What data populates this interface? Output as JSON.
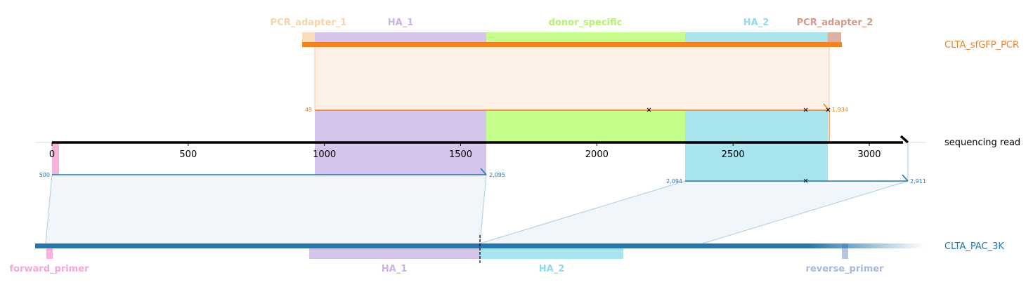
{
  "colors": {
    "orange": "#f5821f",
    "orange_fill": "#fdf0e6",
    "blue": "#1f77b4",
    "blue_fill": "#eaf2f8",
    "ha1": "#d6c5eb",
    "donor": "#c6fe8c",
    "ha2": "#a8e4ee",
    "pcr1": "#fbdcb8",
    "pcr2": "#dcb1a4",
    "primer_fwd": "#f8b3dc",
    "primer_rev": "#b7c4e2",
    "black": "#000000"
  },
  "top_reference": {
    "name": "CLTA_sfGFP_PCR",
    "features": [
      {
        "label": "PCR_adapter_1",
        "color": "#fbd5a8",
        "start": 918,
        "end": 964
      },
      {
        "label": "HA_1",
        "color": "#d6c5eb",
        "start": 964,
        "end": 1595
      },
      {
        "label": "donor_specific",
        "color": "#c6fe8c",
        "start": 1595,
        "end": 2327
      },
      {
        "label": "HA_2",
        "color": "#a8e4ee",
        "start": 2327,
        "end": 2853
      },
      {
        "label": "PCR_adapter_2",
        "color": "#dcb1a4",
        "start": 2853,
        "end": 2898
      }
    ],
    "alignment": {
      "ref_start": 48,
      "ref_end": "1,934",
      "ref_start_label": "48",
      "ref_end_label": "1,934"
    }
  },
  "read": {
    "name": "sequencing read",
    "length": 3150,
    "ticks": [
      0,
      500,
      1000,
      1500,
      2000,
      2500,
      3000
    ],
    "tick_labels": [
      "0",
      "500",
      "1000",
      "1500",
      "2000",
      "2500",
      "3000"
    ]
  },
  "bottom_reference": {
    "name": "CLTA_PAC_3K",
    "alignments": [
      {
        "read_start": 0,
        "read_end": 1595,
        "start_label": "500",
        "end_label": "2,095"
      },
      {
        "read_start": 2327,
        "read_end": 3150,
        "start_label": "2,094",
        "end_label": "2,911"
      }
    ],
    "features": [
      {
        "label": "forward_primer",
        "color": "#f8b3dc"
      },
      {
        "label": "HA_1",
        "color": "#d6c5eb"
      },
      {
        "label": "HA_2",
        "color": "#a8e4ee"
      },
      {
        "label": "reverse_primer",
        "color": "#b7c4e2"
      }
    ]
  }
}
